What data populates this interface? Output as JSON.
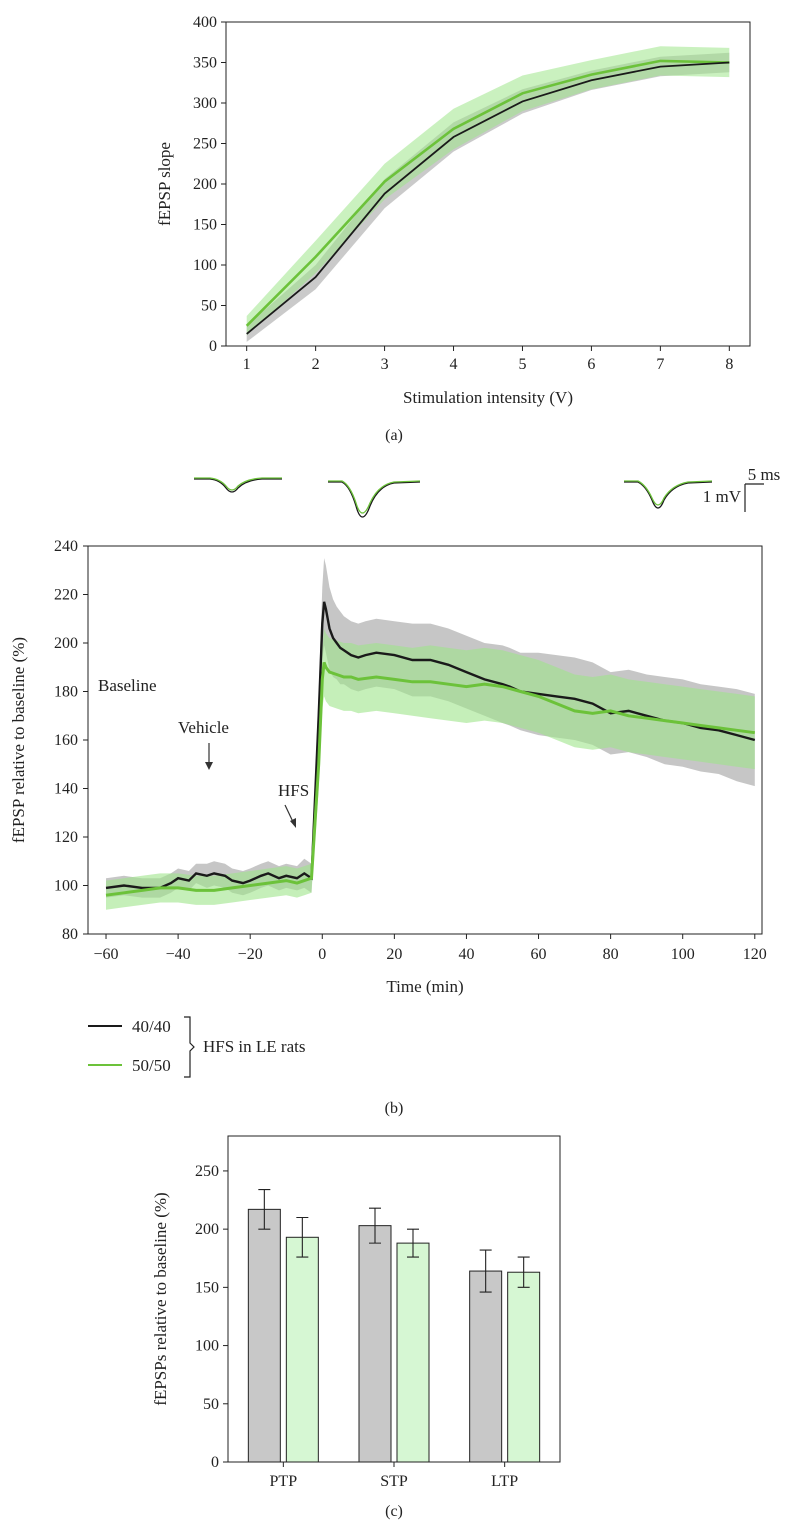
{
  "colors": {
    "ctrl_line": "#1a1a1a",
    "ctrl_band": "#b3b3b3",
    "treat_line": "#6cc23a",
    "treat_band": "#9ee58a",
    "bar_ctrl": "#c8c8c8",
    "bar_treat": "#d6f7d3"
  },
  "chart_data": [
    {
      "id": "a",
      "type": "line",
      "panel_label": "(a)",
      "xlabel": "Stimulation intensity (V)",
      "ylabel": "fEPSP slope",
      "xlim": [
        0.7,
        8.3
      ],
      "ylim": [
        0,
        400
      ],
      "xticks": [
        1,
        2,
        3,
        4,
        5,
        6,
        7,
        8
      ],
      "yticks": [
        0,
        50,
        100,
        150,
        200,
        250,
        300,
        350,
        400
      ],
      "x": [
        1,
        2,
        3,
        4,
        5,
        6,
        7,
        8
      ],
      "series": [
        {
          "key": "ctrl",
          "values": [
            15,
            85,
            188,
            258,
            302,
            328,
            345,
            350
          ],
          "band": [
            10,
            15,
            18,
            18,
            15,
            12,
            12,
            12
          ]
        },
        {
          "key": "treat",
          "values": [
            25,
            110,
            203,
            268,
            312,
            335,
            352,
            350
          ],
          "band": [
            12,
            20,
            22,
            25,
            22,
            18,
            18,
            18
          ]
        }
      ]
    },
    {
      "id": "b",
      "type": "line",
      "panel_label": "(b)",
      "xlabel": "Time (min)",
      "ylabel": "fEPSP relative to baseline (%)",
      "xlim": [
        -65,
        122
      ],
      "ylim": [
        80,
        240
      ],
      "xticks": [
        -60,
        -40,
        -20,
        0,
        20,
        40,
        60,
        80,
        100,
        120
      ],
      "xtick_labels": [
        "−60",
        "−40",
        "−20",
        "0",
        "20",
        "40",
        "60",
        "80",
        "100",
        "120"
      ],
      "yticks": [
        80,
        100,
        120,
        140,
        160,
        180,
        200,
        220,
        240
      ],
      "annotations": {
        "baseline": "Baseline",
        "vehicle": "Vehicle",
        "hfs": "HFS"
      },
      "scale_bar": {
        "time": "5 ms",
        "amplitude": "1 mV"
      },
      "legend": {
        "entries": [
          "40/40",
          "50/50"
        ],
        "group": "HFS in LE rats"
      },
      "series": [
        {
          "key": "ctrl",
          "name": "40/40",
          "x": [
            -60,
            -55,
            -50,
            -45,
            -42,
            -40,
            -37,
            -35,
            -32,
            -30,
            -27,
            -25,
            -22,
            -20,
            -17,
            -15,
            -12,
            -10,
            -7,
            -5,
            -3,
            -1,
            0,
            0.5,
            1,
            2,
            3,
            4,
            5,
            6,
            8,
            10,
            12,
            15,
            20,
            25,
            30,
            35,
            40,
            45,
            50,
            52,
            55,
            60,
            65,
            70,
            75,
            80,
            85,
            90,
            95,
            100,
            105,
            110,
            115,
            120
          ],
          "values": [
            99,
            100,
            99,
            99,
            101,
            103,
            102,
            105,
            104,
            105,
            104,
            102,
            101,
            102,
            104,
            105,
            103,
            104,
            103,
            105,
            103,
            170,
            208,
            217,
            214,
            206,
            202,
            200,
            198,
            197,
            195,
            194,
            195,
            196,
            195,
            193,
            193,
            191,
            188,
            185,
            183,
            182,
            180,
            179,
            178,
            177,
            175,
            171,
            172,
            170,
            168,
            167,
            165,
            164,
            162,
            160
          ],
          "band": [
            4,
            4,
            4,
            4,
            4,
            4,
            4,
            4,
            5,
            5,
            5,
            5,
            5,
            5,
            5,
            5,
            5,
            5,
            5,
            6,
            6,
            10,
            15,
            18,
            18,
            17,
            16,
            15,
            15,
            14,
            14,
            14,
            14,
            14,
            14,
            15,
            15,
            15,
            15,
            15,
            16,
            16,
            16,
            17,
            17,
            17,
            17,
            17,
            17,
            17,
            18,
            18,
            18,
            18,
            19,
            19
          ]
        },
        {
          "key": "treat",
          "name": "50/50",
          "x": [
            -60,
            -55,
            -50,
            -45,
            -40,
            -35,
            -30,
            -25,
            -20,
            -15,
            -10,
            -7,
            -5,
            -3,
            -1,
            0,
            0.5,
            1,
            2,
            4,
            6,
            8,
            10,
            15,
            20,
            25,
            30,
            35,
            40,
            45,
            50,
            55,
            60,
            65,
            70,
            75,
            80,
            85,
            90,
            95,
            100,
            105,
            110,
            115,
            120
          ],
          "values": [
            96,
            97,
            98,
            99,
            99,
            98,
            98,
            99,
            100,
            101,
            102,
            101,
            102,
            103,
            150,
            185,
            192,
            190,
            188,
            187,
            186,
            186,
            185,
            186,
            185,
            184,
            184,
            183,
            182,
            183,
            182,
            180,
            178,
            175,
            172,
            171,
            172,
            170,
            169,
            168,
            167,
            166,
            165,
            164,
            163
          ],
          "band": [
            6,
            6,
            6,
            6,
            6,
            6,
            6,
            6,
            6,
            6,
            6,
            6,
            6,
            6,
            10,
            12,
            14,
            14,
            14,
            14,
            14,
            14,
            14,
            14,
            14,
            14,
            15,
            15,
            15,
            15,
            15,
            15,
            15,
            15,
            15,
            15,
            15,
            15,
            15,
            15,
            15,
            15,
            15,
            15,
            15
          ]
        }
      ]
    },
    {
      "id": "c",
      "type": "bar",
      "panel_label": "(c)",
      "ylabel": "fEPSPs relative to baseline (%)",
      "ylim": [
        0,
        280
      ],
      "yticks": [
        0,
        50,
        100,
        150,
        200,
        250
      ],
      "categories": [
        "PTP",
        "STP",
        "LTP"
      ],
      "series": [
        {
          "key": "ctrl",
          "values": [
            217,
            203,
            164
          ],
          "errors": [
            17,
            15,
            18
          ]
        },
        {
          "key": "treat",
          "values": [
            193,
            188,
            163
          ],
          "errors": [
            17,
            12,
            13
          ]
        }
      ]
    }
  ]
}
